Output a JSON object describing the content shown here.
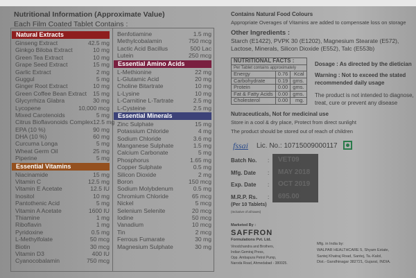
{
  "title": "Nutritional Information (Approximate Value)",
  "subtitle": "Each Film Coated Tablet Contains :",
  "colors": {
    "natural": "#8e1e1e",
    "amino": "#7a2040",
    "minerals": "#3c4278",
    "vitamins": "#94501e"
  },
  "left": {
    "natural_title": "Natural Extracts",
    "natural": [
      [
        "Ginseng Extract",
        "42.5 mg"
      ],
      [
        "Ginkgo Biloba Extract",
        "10 mg"
      ],
      [
        "Green Tea Extract",
        "10 mg"
      ],
      [
        "Grape Seed Extract",
        "15 mg"
      ],
      [
        "Garlic Extract",
        "2 mg"
      ],
      [
        "Guggul",
        "5 mg"
      ],
      [
        "Ginger Root Extract",
        "10 mg"
      ],
      [
        "Green Coffee Bean Extract",
        "15 mg"
      ],
      [
        "Glycyrrhiza Glabra",
        "30 mg"
      ],
      [
        "Lycopene",
        "10,000 mcg"
      ],
      [
        "Mixed Carotenoids",
        "5 mg"
      ],
      [
        "Citrus Bioflavonoids Complex",
        "12.5 mg"
      ],
      [
        "EPA (10 %)",
        "90 mg"
      ],
      [
        "DHA (10 %)",
        "60 mg"
      ],
      [
        "Curcuma Longa",
        "5 mg"
      ],
      [
        "Wheat Germ Oil",
        "25 mg"
      ],
      [
        "Piperine",
        "5 mg"
      ]
    ],
    "vitamins_title": "Essential Vitamins",
    "vitamins": [
      [
        "Niacinamide",
        "15 mg"
      ],
      [
        "Vitamin C",
        "12.5 mg"
      ],
      [
        "Vitamin E Acetate",
        "12.5 IU"
      ],
      [
        "Inositol",
        "10 mg"
      ],
      [
        "Pantothenic Acid",
        "5 mg"
      ],
      [
        "Vitamin A Acetate",
        "1600 IU"
      ],
      [
        "Thiamine",
        "1 mg"
      ],
      [
        "Riboflavin",
        "1 mg"
      ],
      [
        "Pyridoxine",
        "0.5 mg"
      ],
      [
        "L-Methylfolate",
        "50 mcg"
      ],
      [
        "Biotin",
        "30 mcg"
      ],
      [
        "Vitamin D3",
        "400 IU"
      ],
      [
        "Cyanocobalamin",
        "750 mcg"
      ]
    ]
  },
  "right": {
    "top": [
      [
        "Benfotiamine",
        "1.5 mg"
      ],
      [
        "Methylcobalamin",
        "750 mcg"
      ],
      [
        "Lactic Acid Bacillus",
        "500 Lac"
      ],
      [
        "Lutein",
        "250 mcg"
      ]
    ],
    "amino_title": "Essential Amino Acids",
    "amino": [
      [
        "L-Methionine",
        "22 mg"
      ],
      [
        "L-Glutamic Acid",
        "20 mg"
      ],
      [
        "Choline Bitartrate",
        "10 mg"
      ],
      [
        "L-Lysine",
        "10 mg"
      ],
      [
        "L-Carnitine L-Tartrate",
        "2.5 mg"
      ],
      [
        "L-Cysteine",
        "2.5 mg"
      ]
    ],
    "minerals_title": "Essential Minerals",
    "minerals": [
      [
        "Zinc Sulphate",
        "15 mg"
      ],
      [
        "Potassium Chloride",
        "4 mg"
      ],
      [
        "Sodium Chloride",
        "3.6 mg"
      ],
      [
        "Manganese Sulphate",
        "1.5 mg"
      ],
      [
        "Calcium Carbonate",
        "5 mg"
      ],
      [
        "Phosphorus",
        "1.65 mg"
      ],
      [
        "Copper Sulphate",
        "0.5 mg"
      ],
      [
        "Silicon Dioxide",
        "2 mg"
      ],
      [
        "Boron",
        "150 mcg"
      ],
      [
        "Sodium Molybdenum",
        "0.5 mg"
      ],
      [
        "Chromium Chloride",
        "65 mcg"
      ],
      [
        "Nickel",
        "5 mcg"
      ],
      [
        "Selenium Selenite",
        "20 mcg"
      ],
      [
        "Iodine",
        "50 mcg"
      ],
      [
        "Vanadium",
        "10 mcg"
      ],
      [
        "Tin",
        "2 mcg"
      ],
      [
        "Ferrous Fumarate",
        "30 mg"
      ],
      [
        "Magnesium Sulphate",
        "30 mg"
      ]
    ]
  },
  "info": {
    "colours": "Contains Natural Food Colours",
    "overages": "Appropriate Overages of Vitamins are added to compensate loss on storage",
    "other_title": "Other Ingredients :",
    "other_1": "Starch (E1422), PVPK 30 (E1202), Magnesium Stearate (E572),",
    "other_2": "Lactose, Minerals, Silicon Dioxide (E552), Talc (E553b)",
    "nf_title": "NUTRITIONAL FACTS :",
    "nf_sub": "Per Tablet contains approximately",
    "nf_rows": [
      [
        "Energy",
        "0.76",
        "Kcal"
      ],
      [
        "Carbohydrate",
        "0.19",
        "gms."
      ],
      [
        "Protein",
        "0.00",
        "gms."
      ],
      [
        "Fat & Fatty Acids",
        "0.00",
        "gms."
      ],
      [
        "Cholesterol",
        "0.00",
        "mg."
      ]
    ],
    "dosage": "Dosage : As directed by the dietician",
    "warning_1": "Warning : Not to exceed the stated",
    "warning_2": "recommended daily usage",
    "disclaimer_1": "The product is not intended to diagnose,",
    "disclaimer_2": "treat, cure or prevent any disease",
    "nutra": "Nutraceuticals, Not for medicinal use",
    "store": "Store in a cool & dry place, Protect from direct sunlight",
    "children": "The product should be stored out of reach of children",
    "fssai": "fssai",
    "lic": "Lic. No.: 10715009000117",
    "batch_label": "Batch No.",
    "mfg_label": "Mfg. Date",
    "exp_label": "Exp. Date",
    "mrp_label": "M.R.P. Rs.",
    "colon": ":",
    "per10": "(Per 10 Tablets)",
    "inclusive": "(Inclusive of all taxes)",
    "batch": "VET09",
    "mfg": "MAY 2018",
    "exp": "OCT 2019",
    "mrp": "695.00",
    "marketed_by": "Marketed By :",
    "brand": "SAFFRON",
    "company": "Formulations Pvt. Ltd.",
    "m_addr": [
      "Vinodchandra and Brothers,",
      "Indian Gemiraj Press,",
      "Opp. Ambapura Petrol Pump,",
      "Naroda Road, Ahmedabad - 380025."
    ],
    "mfg_by": "Mfg. in India by:",
    "w_addr": [
      "WALPAR HEALTHCARE 5, Shyam Estate,",
      "Santej Khatraj Road, Santej, Ta.-Kalol,",
      "Dist.- Gandhinagar 382721, Gujarat, INDIA."
    ]
  }
}
